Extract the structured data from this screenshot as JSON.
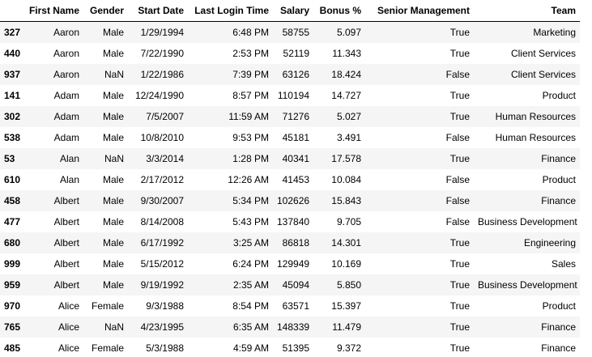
{
  "table": {
    "columns": [
      "",
      "First Name",
      "Gender",
      "Start Date",
      "Last Login Time",
      "Salary",
      "Bonus %",
      "Senior Management",
      "Team"
    ],
    "rows": [
      [
        "327",
        "Aaron",
        "Male",
        "1/29/1994",
        "6:48 PM",
        "58755",
        "5.097",
        "True",
        "Marketing"
      ],
      [
        "440",
        "Aaron",
        "Male",
        "7/22/1990",
        "2:53 PM",
        "52119",
        "11.343",
        "True",
        "Client Services"
      ],
      [
        "937",
        "Aaron",
        "NaN",
        "1/22/1986",
        "7:39 PM",
        "63126",
        "18.424",
        "False",
        "Client Services"
      ],
      [
        "141",
        "Adam",
        "Male",
        "12/24/1990",
        "8:57 PM",
        "110194",
        "14.727",
        "True",
        "Product"
      ],
      [
        "302",
        "Adam",
        "Male",
        "7/5/2007",
        "11:59 AM",
        "71276",
        "5.027",
        "True",
        "Human Resources"
      ],
      [
        "538",
        "Adam",
        "Male",
        "10/8/2010",
        "9:53 PM",
        "45181",
        "3.491",
        "False",
        "Human Resources"
      ],
      [
        "53",
        "Alan",
        "NaN",
        "3/3/2014",
        "1:28 PM",
        "40341",
        "17.578",
        "True",
        "Finance"
      ],
      [
        "610",
        "Alan",
        "Male",
        "2/17/2012",
        "12:26 AM",
        "41453",
        "10.084",
        "False",
        "Product"
      ],
      [
        "458",
        "Albert",
        "Male",
        "9/30/2007",
        "5:34 PM",
        "102626",
        "15.843",
        "False",
        "Finance"
      ],
      [
        "477",
        "Albert",
        "Male",
        "8/14/2008",
        "5:43 PM",
        "137840",
        "9.705",
        "False",
        "Business Development"
      ],
      [
        "680",
        "Albert",
        "Male",
        "6/17/1992",
        "3:25 AM",
        "86818",
        "14.301",
        "True",
        "Engineering"
      ],
      [
        "999",
        "Albert",
        "Male",
        "5/15/2012",
        "6:24 PM",
        "129949",
        "10.169",
        "True",
        "Sales"
      ],
      [
        "959",
        "Albert",
        "Male",
        "9/19/1992",
        "2:35 AM",
        "45094",
        "5.850",
        "True",
        "Business Development"
      ],
      [
        "970",
        "Alice",
        "Female",
        "9/3/1988",
        "8:54 PM",
        "63571",
        "15.397",
        "True",
        "Product"
      ],
      [
        "765",
        "Alice",
        "NaN",
        "4/23/1995",
        "6:35 AM",
        "148339",
        "11.479",
        "True",
        "Finance"
      ],
      [
        "485",
        "Alice",
        "Female",
        "5/3/1988",
        "4:59 AM",
        "51395",
        "9.372",
        "True",
        "Finance"
      ]
    ]
  }
}
